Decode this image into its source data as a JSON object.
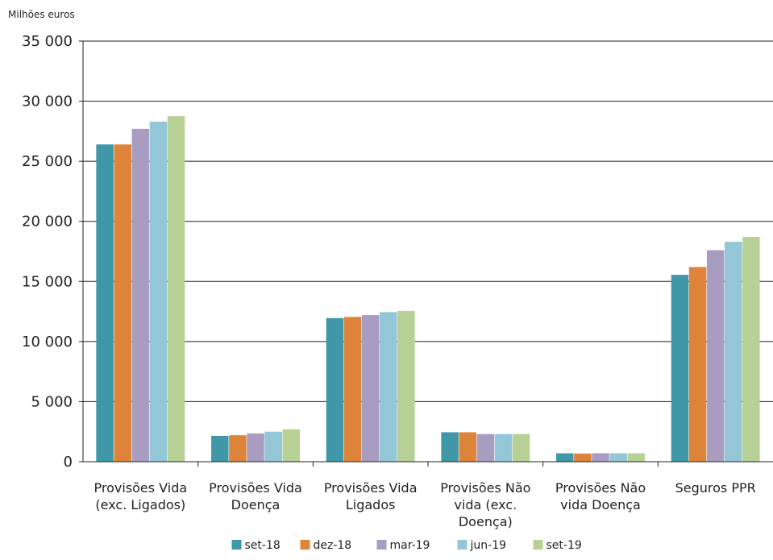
{
  "chart_data": {
    "type": "bar",
    "unit_label": "Milhões euros",
    "categories": [
      [
        "Provisões Vida",
        "(exc. Ligados)"
      ],
      [
        "Provisões Vida",
        "Doença"
      ],
      [
        "Provisões Vida",
        "Ligados"
      ],
      [
        "Provisões Não",
        "vida (exc.",
        "Doença)"
      ],
      [
        "Provisões Não",
        "vida Doença"
      ],
      [
        "Seguros PPR"
      ]
    ],
    "y_ticks": [
      "0",
      "5 000",
      "10 000",
      "15 000",
      "20 000",
      "25 000",
      "30 000",
      "35 000"
    ],
    "ylim": [
      0,
      35000
    ],
    "grid": true,
    "legend_position": "bottom",
    "series": [
      {
        "name": "set-18",
        "color": "#3f97a8",
        "values": [
          26400,
          2150,
          11950,
          2450,
          700,
          15550
        ]
      },
      {
        "name": "dez-18",
        "color": "#dd843a",
        "values": [
          26400,
          2200,
          12050,
          2450,
          680,
          16200
        ]
      },
      {
        "name": "mar-19",
        "color": "#a99cc1",
        "values": [
          27700,
          2350,
          12200,
          2300,
          700,
          17600
        ]
      },
      {
        "name": "jun-19",
        "color": "#93c6d6",
        "values": [
          28300,
          2500,
          12450,
          2300,
          700,
          18300
        ]
      },
      {
        "name": "set-19",
        "color": "#b7d095",
        "values": [
          28750,
          2700,
          12550,
          2300,
          700,
          18700
        ]
      }
    ]
  }
}
